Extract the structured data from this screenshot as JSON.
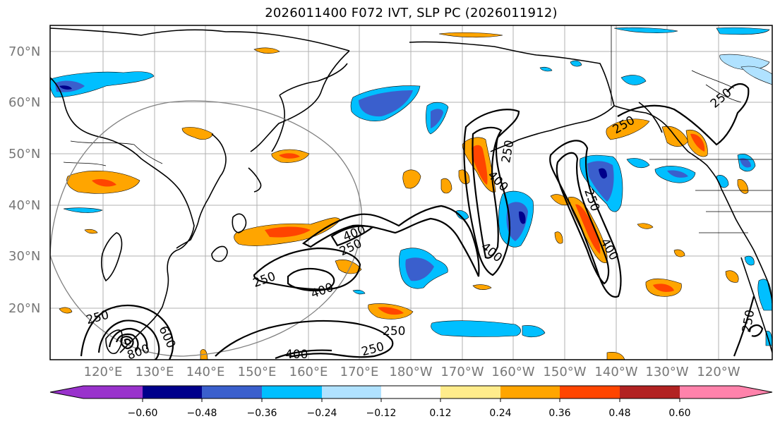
{
  "title": "2026011400 F072 IVT, SLP PC (2026011912)",
  "map": {
    "lat_labels": [
      "70°N",
      "60°N",
      "50°N",
      "40°N",
      "30°N",
      "20°N"
    ],
    "lon_labels": [
      "120°E",
      "130°E",
      "140°E",
      "150°E",
      "160°E",
      "170°E",
      "180°W",
      "170°W",
      "160°W",
      "150°W",
      "140°W",
      "130°W",
      "120°W"
    ],
    "contour_labels": [
      "250",
      "250",
      "250",
      "250",
      "250",
      "250",
      "250",
      "250",
      "250",
      "400",
      "400",
      "400",
      "400",
      "400",
      "400",
      "600",
      "800"
    ]
  },
  "colorbar": {
    "ticks": [
      "−0.60",
      "−0.48",
      "−0.36",
      "−0.24",
      "−0.12",
      "0.12",
      "0.24",
      "0.36",
      "0.48",
      "0.60"
    ],
    "colors": [
      "#9932CC",
      "#00008B",
      "#3A5FCD",
      "#00BFFF",
      "#B0E2FF",
      "#FFFFFF",
      "#FFEC8B",
      "#FFA500",
      "#FF4500",
      "#B22222",
      "#FF82AB"
    ]
  }
}
